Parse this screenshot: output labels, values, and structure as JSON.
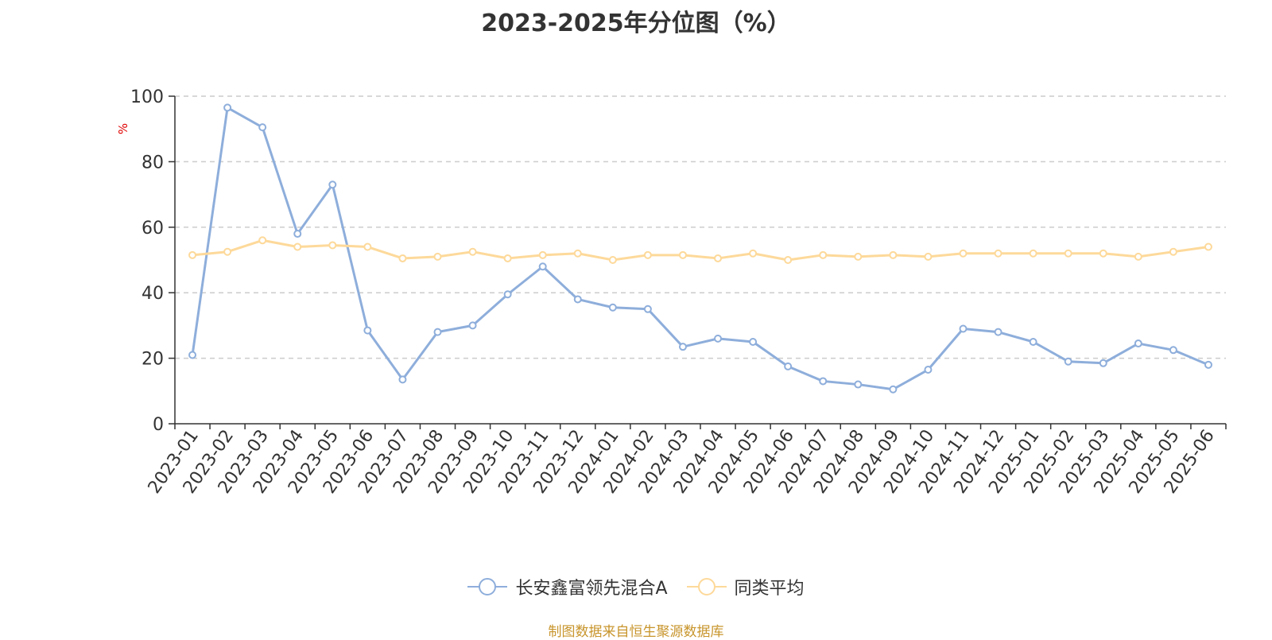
{
  "colors": {
    "series_a": "#8eaedb",
    "series_b": "#fdd99a",
    "axis": "#333333",
    "grid": "#cccccc",
    "ylabel": "#e00000",
    "source": "#c8952c"
  },
  "source_note": "制图数据来自恒生聚源数据库",
  "chart_data": {
    "type": "line",
    "title": "2023-2025年分位图（%）",
    "ylabel": "%",
    "xlabel": "",
    "ylim": [
      0,
      100
    ],
    "yticks": [
      0,
      20,
      40,
      60,
      80,
      100
    ],
    "grid": true,
    "legend_position": "bottom",
    "categories": [
      "2023-01",
      "2023-02",
      "2023-03",
      "2023-04",
      "2023-05",
      "2023-06",
      "2023-07",
      "2023-08",
      "2023-09",
      "2023-10",
      "2023-11",
      "2023-12",
      "2024-01",
      "2024-02",
      "2024-03",
      "2024-04",
      "2024-05",
      "2024-06",
      "2024-07",
      "2024-08",
      "2024-09",
      "2024-10",
      "2024-11",
      "2024-12",
      "2025-01",
      "2025-02",
      "2025-03",
      "2025-04",
      "2025-05",
      "2025-06"
    ],
    "series": [
      {
        "name": "长安鑫富领先混合A",
        "values": [
          21,
          96.5,
          90.5,
          58,
          73,
          28.5,
          13.5,
          28,
          30,
          39.5,
          48,
          38,
          35.5,
          35,
          23.5,
          26,
          25,
          17.5,
          13,
          12,
          10.5,
          16.5,
          29,
          28,
          25,
          19,
          18.5,
          24.5,
          22.5,
          18
        ]
      },
      {
        "name": "同类平均",
        "values": [
          51.5,
          52.5,
          56,
          54,
          54.5,
          54,
          50.5,
          51,
          52.5,
          50.5,
          51.5,
          52,
          50,
          51.5,
          51.5,
          50.5,
          52,
          50,
          51.5,
          51,
          51.5,
          51,
          52,
          52,
          52,
          52,
          52,
          51,
          52.5,
          54
        ]
      }
    ]
  }
}
